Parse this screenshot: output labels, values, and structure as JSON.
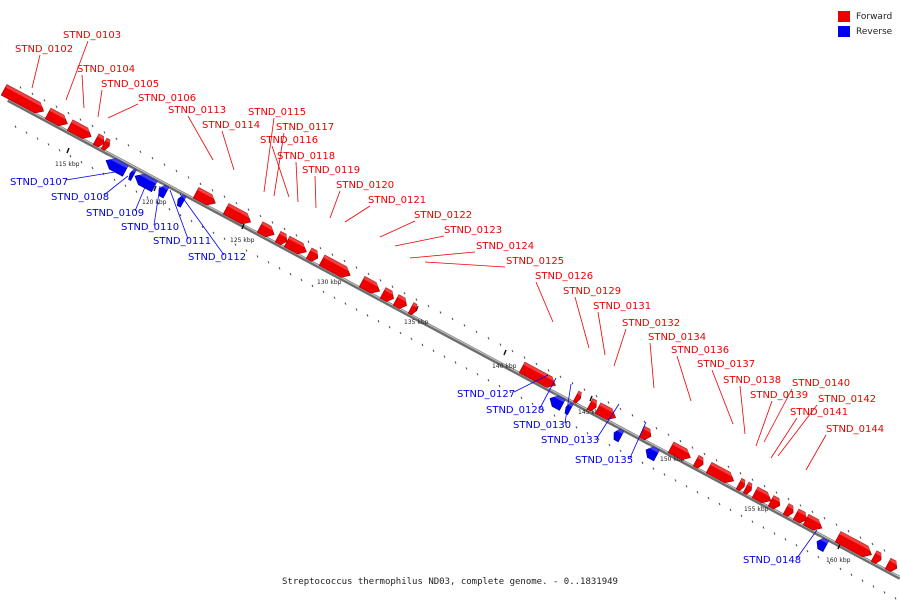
{
  "legend": {
    "forward_label": "Forward",
    "forward_color": "#ee0000",
    "reverse_label": "Reverse",
    "reverse_color": "#0000ee"
  },
  "caption": "Streptococcus thermophilus ND03, complete genome. - 0..1831949",
  "scale_labels": [
    "115 kbp",
    "120 kbp",
    "125 kbp",
    "130 kbp",
    "135 kbp",
    "140 kbp",
    "145 kbp",
    "150 kbp",
    "155 kbp",
    "160 kbp"
  ],
  "forward_genes": [
    "STND_0102",
    "STND_0103",
    "STND_0104",
    "STND_0105",
    "STND_0106",
    "STND_0113",
    "STND_0114",
    "STND_0115",
    "STND_0117",
    "STND_0116",
    "STND_0118",
    "STND_0119",
    "STND_0120",
    "STND_0121",
    "STND_0122",
    "STND_0123",
    "STND_0124",
    "STND_0125",
    "STND_0126",
    "STND_0129",
    "STND_0131",
    "STND_0132",
    "STND_0134",
    "STND_0136",
    "STND_0137",
    "STND_0138",
    "STND_0139",
    "STND_0140",
    "STND_0142",
    "STND_0141",
    "STND_0144"
  ],
  "reverse_genes": [
    "STND_0107",
    "STND_0108",
    "STND_0109",
    "STND_0110",
    "STND_0111",
    "STND_0112",
    "STND_0127",
    "STND_0128",
    "STND_0130",
    "STND_0133",
    "STND_0135",
    "STND_0148"
  ]
}
